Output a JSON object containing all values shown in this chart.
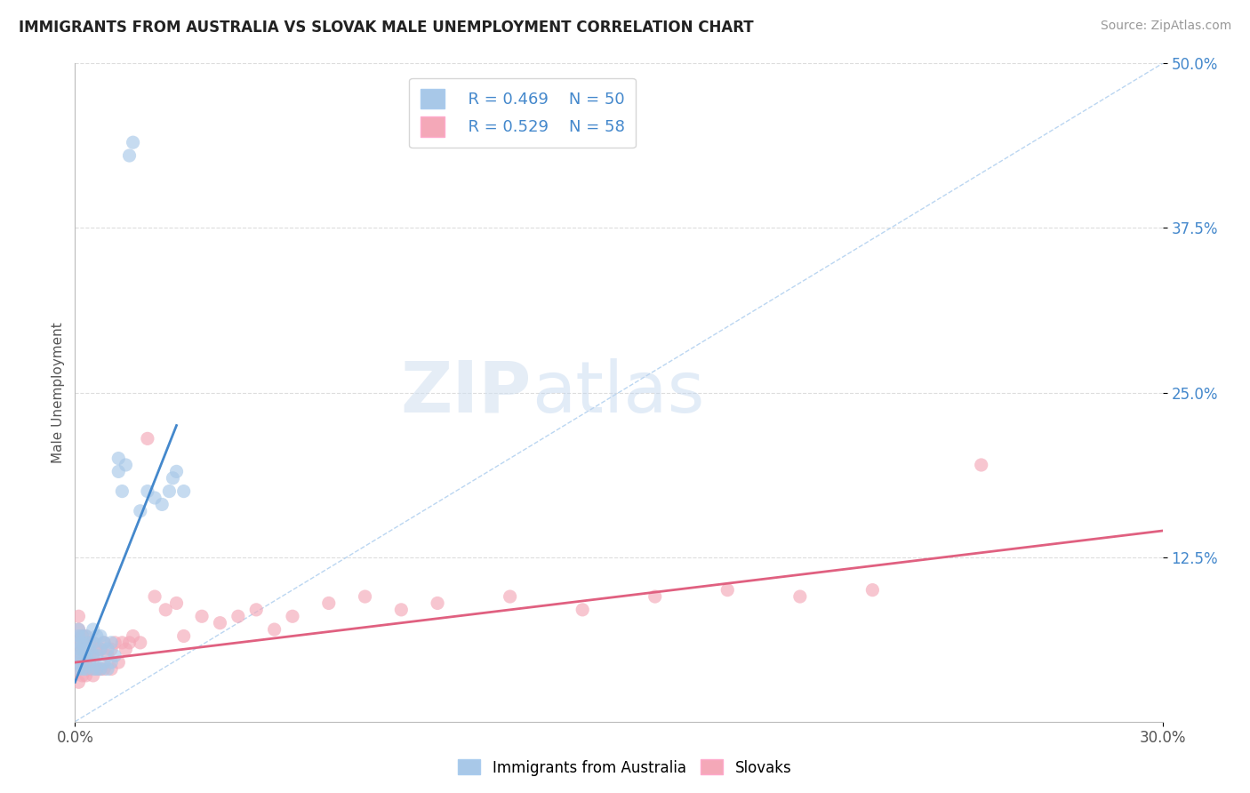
{
  "title": "IMMIGRANTS FROM AUSTRALIA VS SLOVAK MALE UNEMPLOYMENT CORRELATION CHART",
  "source": "Source: ZipAtlas.com",
  "ylabel": "Male Unemployment",
  "xlim": [
    0.0,
    0.3
  ],
  "ylim": [
    0.0,
    0.5
  ],
  "xtick_labels": [
    "0.0%",
    "30.0%"
  ],
  "ytick_positions": [
    0.125,
    0.25,
    0.375,
    0.5
  ],
  "ytick_labels": [
    "12.5%",
    "25.0%",
    "37.5%",
    "50.0%"
  ],
  "legend1_R": "0.469",
  "legend1_N": "50",
  "legend2_R": "0.529",
  "legend2_N": "58",
  "color_blue": "#A8C8E8",
  "color_pink": "#F4A8B8",
  "color_blue_line": "#4488CC",
  "color_pink_line": "#E06080",
  "color_diag": "#AACCEE",
  "watermark_ZIP": "ZIP",
  "watermark_atlas": "atlas",
  "blue_scatter_x": [
    0.001,
    0.001,
    0.001,
    0.001,
    0.001,
    0.001,
    0.001,
    0.002,
    0.002,
    0.002,
    0.002,
    0.002,
    0.003,
    0.003,
    0.003,
    0.003,
    0.004,
    0.004,
    0.004,
    0.005,
    0.005,
    0.005,
    0.005,
    0.006,
    0.006,
    0.006,
    0.007,
    0.007,
    0.007,
    0.008,
    0.008,
    0.009,
    0.009,
    0.01,
    0.01,
    0.011,
    0.012,
    0.012,
    0.013,
    0.014,
    0.015,
    0.016,
    0.018,
    0.02,
    0.022,
    0.024,
    0.026,
    0.027,
    0.028,
    0.03
  ],
  "blue_scatter_y": [
    0.04,
    0.045,
    0.05,
    0.055,
    0.06,
    0.065,
    0.07,
    0.04,
    0.05,
    0.055,
    0.06,
    0.065,
    0.04,
    0.05,
    0.055,
    0.065,
    0.045,
    0.055,
    0.06,
    0.04,
    0.05,
    0.06,
    0.07,
    0.04,
    0.05,
    0.065,
    0.04,
    0.055,
    0.065,
    0.045,
    0.06,
    0.04,
    0.055,
    0.045,
    0.06,
    0.05,
    0.19,
    0.2,
    0.175,
    0.195,
    0.43,
    0.44,
    0.16,
    0.175,
    0.17,
    0.165,
    0.175,
    0.185,
    0.19,
    0.175
  ],
  "pink_scatter_x": [
    0.001,
    0.001,
    0.001,
    0.001,
    0.001,
    0.001,
    0.002,
    0.002,
    0.002,
    0.002,
    0.003,
    0.003,
    0.003,
    0.003,
    0.004,
    0.004,
    0.004,
    0.005,
    0.005,
    0.005,
    0.006,
    0.006,
    0.007,
    0.007,
    0.008,
    0.008,
    0.009,
    0.01,
    0.01,
    0.011,
    0.012,
    0.013,
    0.014,
    0.015,
    0.016,
    0.018,
    0.02,
    0.022,
    0.025,
    0.028,
    0.03,
    0.035,
    0.04,
    0.045,
    0.05,
    0.055,
    0.06,
    0.07,
    0.08,
    0.09,
    0.1,
    0.12,
    0.14,
    0.16,
    0.18,
    0.2,
    0.22,
    0.25
  ],
  "pink_scatter_y": [
    0.03,
    0.04,
    0.05,
    0.06,
    0.07,
    0.08,
    0.035,
    0.045,
    0.055,
    0.065,
    0.035,
    0.045,
    0.055,
    0.065,
    0.04,
    0.05,
    0.06,
    0.035,
    0.05,
    0.06,
    0.04,
    0.055,
    0.04,
    0.055,
    0.04,
    0.06,
    0.05,
    0.04,
    0.055,
    0.06,
    0.045,
    0.06,
    0.055,
    0.06,
    0.065,
    0.06,
    0.215,
    0.095,
    0.085,
    0.09,
    0.065,
    0.08,
    0.075,
    0.08,
    0.085,
    0.07,
    0.08,
    0.09,
    0.095,
    0.085,
    0.09,
    0.095,
    0.085,
    0.095,
    0.1,
    0.095,
    0.1,
    0.195
  ],
  "blue_trend_x": [
    0.0,
    0.028
  ],
  "blue_trend_y": [
    0.03,
    0.225
  ],
  "pink_trend_x": [
    0.0,
    0.3
  ],
  "pink_trend_y": [
    0.045,
    0.145
  ]
}
